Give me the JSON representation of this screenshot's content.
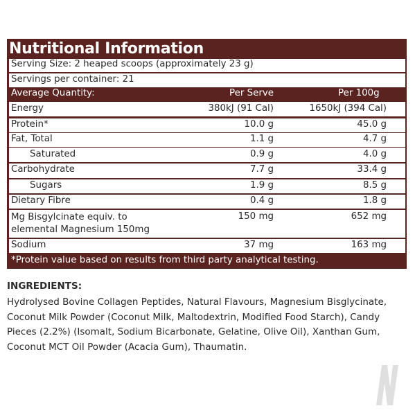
{
  "title": "Nutritional Information",
  "serving_size": "Serving Size: 2 heaped scoops (approximately 23 g)",
  "servings_per_container": "Servings per container: 21",
  "header": {
    "label": "Average Quantity:",
    "per_serve": "Per Serve",
    "per_100g": "Per 100g"
  },
  "rows": [
    {
      "name": "Energy",
      "per_serve": "380kJ (91 Cal)",
      "per_100g": "1650kJ (394 Cal)"
    },
    {
      "name": "Protein*",
      "per_serve": "10.0 g",
      "per_100g": "45.0 g"
    },
    {
      "name": "Fat, Total",
      "per_serve": "1.1 g",
      "per_100g": "4.7 g"
    },
    {
      "name": "Saturated",
      "per_serve": "0.9 g",
      "per_100g": "4.0 g"
    },
    {
      "name": "Carbohydrate",
      "per_serve": "7.7 g",
      "per_100g": "33.4 g"
    },
    {
      "name": "Sugars",
      "per_serve": "1.9 g",
      "per_100g": "8.5 g"
    },
    {
      "name": "Dietary Fibre",
      "per_serve": "0.4 g",
      "per_100g": "1.8 g"
    },
    {
      "name_line1": "Mg Bisgylcinate equiv. to",
      "name_line2": "elemental Magnesium 150mg",
      "per_serve": "150 mg",
      "per_100g": "652 mg"
    },
    {
      "name": "Sodium",
      "per_serve": "37 mg",
      "per_100g": "163 mg"
    }
  ],
  "footnote": "*Protein value based on results from third party analytical testing.",
  "ingredients_title": "INGREDIENTS:",
  "ingredients_text": "Hydrolysed Bovine Collagen Peptides, Natural Flavours, Magnesium Bisglycinate, Coconut Milk Powder (Coconut Milk, Maltodextrin, Modified Food Starch), Candy Pieces (2.2%) (Isomalt, Sodium Bicarbonate, Gelatine, Olive Oil), Xanthan Gum, Coconut MCT Oil Powder (Acacia Gum), Thaumatin.",
  "colors": {
    "panel": "#5b2320",
    "text": "#2a2a2a",
    "logo": "#d9d9d9"
  },
  "logo_icon": "watermark-n-logo-icon"
}
